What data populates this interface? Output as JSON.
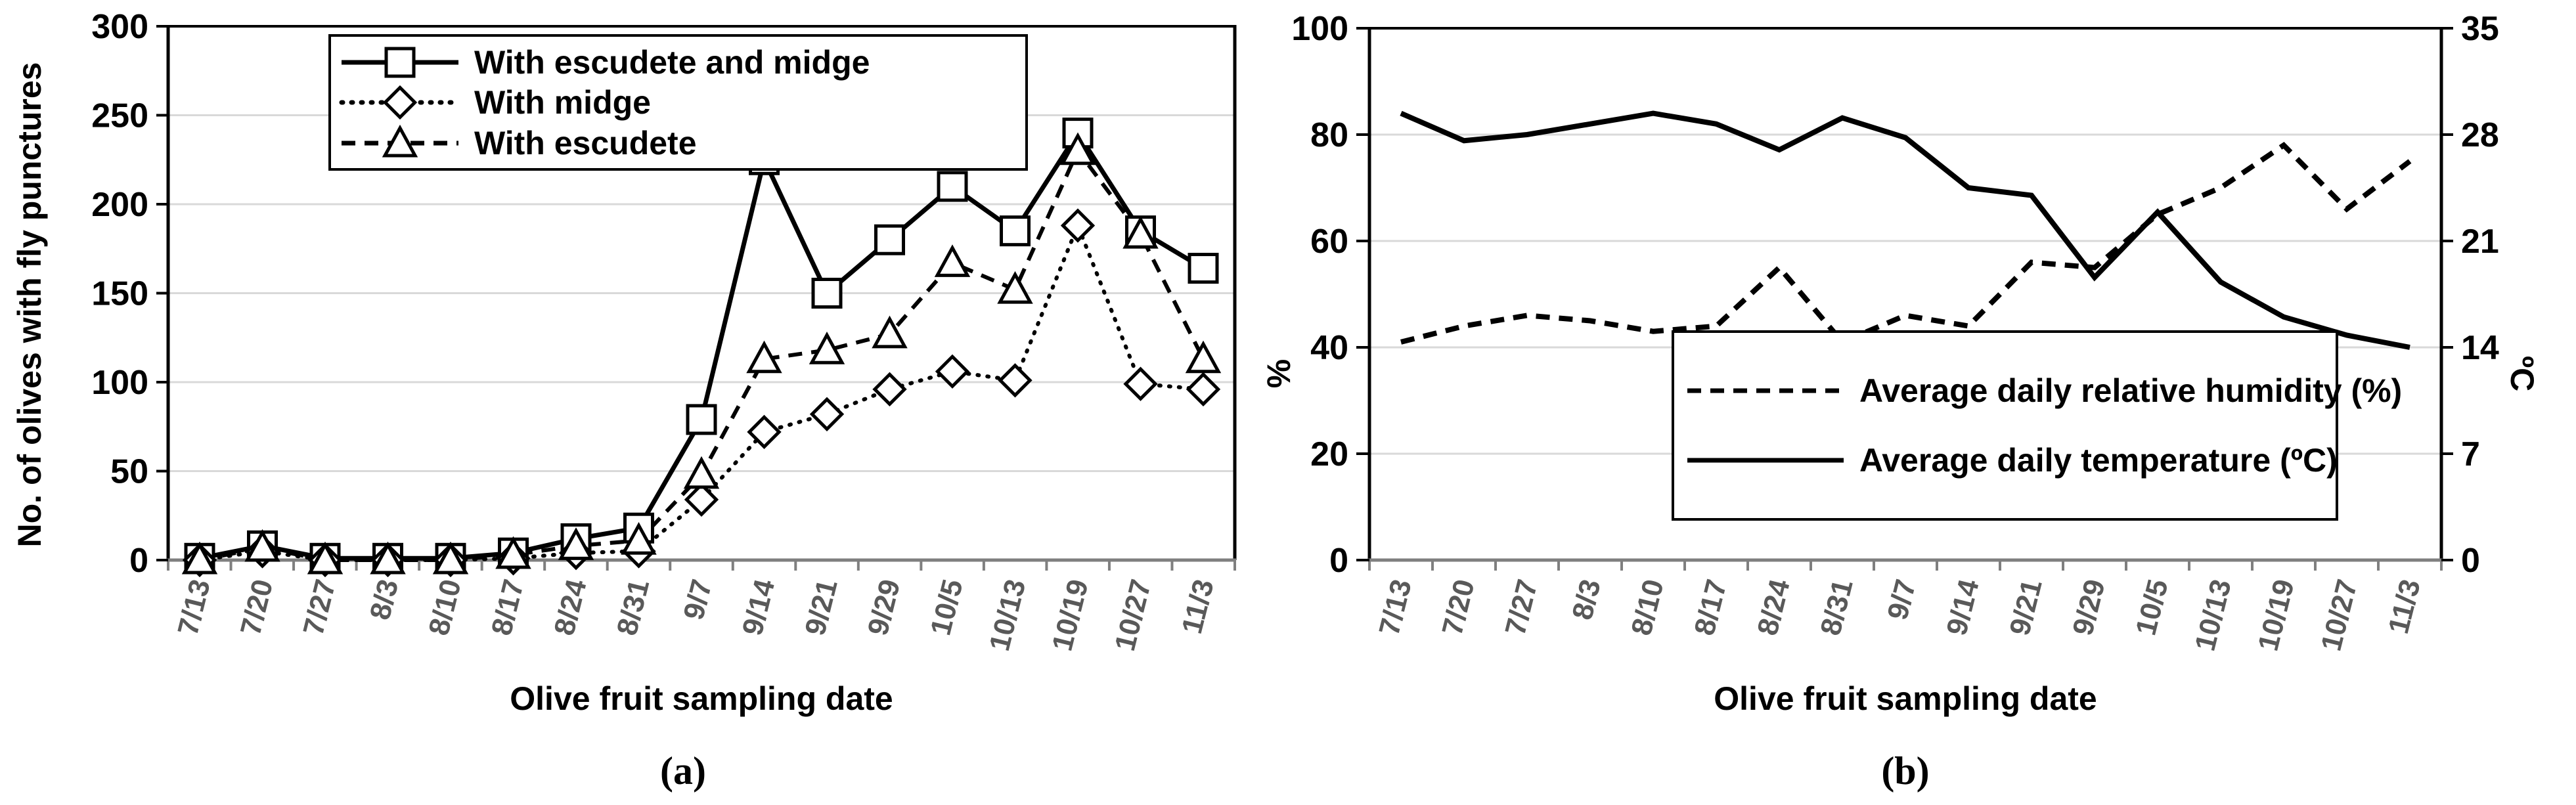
{
  "colors": {
    "series": "#000000",
    "gridline": "#d9d9d9",
    "plot_border": "#000000",
    "x_axis_gray": "#7f7f7f",
    "date_label_gray": "#595959"
  },
  "chart_data": [
    {
      "id": "a",
      "type": "line",
      "caption": "(a)",
      "xlabel": "Olive fruit sampling date",
      "ylabel": "No. of olives with fly punctures",
      "ylim": [
        0,
        300
      ],
      "y_ticks": [
        0,
        50,
        100,
        150,
        200,
        250,
        300
      ],
      "grid": true,
      "legend_position": "top-left",
      "categories": [
        "7/13",
        "7/20",
        "7/27",
        "8/3",
        "8/10",
        "8/17",
        "8/24",
        "8/31",
        "9/7",
        "9/14",
        "9/21",
        "9/29",
        "10/5",
        "10/13",
        "10/19",
        "10/27",
        "11/3"
      ],
      "series": [
        {
          "name": "With escudete and midge",
          "line": "solid",
          "marker": "square",
          "values": [
            1,
            8,
            1,
            1,
            1,
            4,
            12,
            18,
            79,
            225,
            150,
            180,
            210,
            185,
            240,
            185,
            164
          ]
        },
        {
          "name": "With midge",
          "line": "dotted",
          "marker": "diamond",
          "values": [
            0,
            5,
            0,
            0,
            0,
            1,
            4,
            5,
            34,
            72,
            82,
            96,
            106,
            101,
            188,
            99,
            96
          ]
        },
        {
          "name": "With escudete",
          "line": "dashed",
          "marker": "triangle",
          "values": [
            0,
            7,
            0,
            0,
            0,
            3,
            8,
            11,
            48,
            113,
            118,
            127,
            167,
            152,
            230,
            183,
            113
          ]
        }
      ]
    },
    {
      "id": "b",
      "type": "line",
      "caption": "(b)",
      "xlabel": "Olive fruit sampling date",
      "ylabel_left": "%",
      "ylabel_right": "ºC",
      "ylim_left": [
        0,
        100
      ],
      "ylim_right": [
        0,
        35
      ],
      "y_ticks_left": [
        0,
        20,
        40,
        60,
        80,
        100
      ],
      "y_ticks_right": [
        0,
        7,
        14,
        21,
        28,
        35
      ],
      "grid": true,
      "legend_position": "bottom-center",
      "categories": [
        "7/13",
        "7/20",
        "7/27",
        "8/3",
        "8/10",
        "8/17",
        "8/24",
        "8/31",
        "9/7",
        "9/14",
        "9/21",
        "9/29",
        "10/5",
        "10/13",
        "10/19",
        "10/27",
        "11/3"
      ],
      "series": [
        {
          "name": "Average daily relative humidity (%)",
          "line": "dashed",
          "axis": "left",
          "values": [
            41,
            44,
            46,
            45,
            43,
            44,
            55,
            41,
            46,
            44,
            56,
            55,
            65,
            70,
            78,
            66,
            75
          ]
        },
        {
          "name": "Average daily temperature (ºC)",
          "line": "solid",
          "axis": "right",
          "values": [
            29.4,
            27.6,
            28.0,
            28.7,
            29.4,
            28.7,
            27.0,
            29.1,
            27.8,
            24.5,
            24.0,
            18.6,
            22.9,
            18.3,
            16.0,
            14.8,
            14.0
          ]
        }
      ]
    }
  ]
}
